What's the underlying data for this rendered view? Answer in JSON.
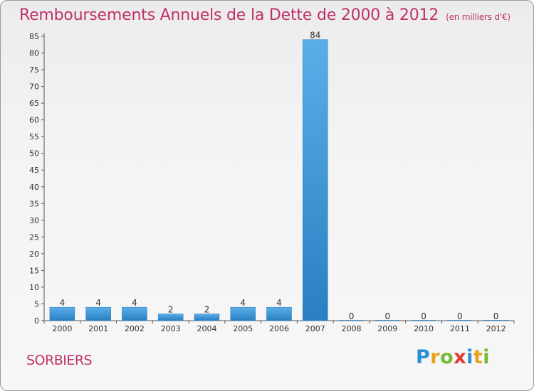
{
  "chart_data": {
    "type": "bar",
    "title": "Remboursements Annuels de la Dette de 2000 à 2012",
    "subtitle": "(en milliers d'€)",
    "categories": [
      "2000",
      "2001",
      "2002",
      "2003",
      "2004",
      "2005",
      "2006",
      "2007",
      "2008",
      "2009",
      "2010",
      "2011",
      "2012"
    ],
    "values": [
      4,
      4,
      4,
      2,
      2,
      4,
      4,
      84,
      0,
      0,
      0,
      0,
      0
    ],
    "ylim": [
      0,
      85
    ],
    "yticks": [
      0,
      5,
      10,
      15,
      20,
      25,
      30,
      35,
      40,
      45,
      50,
      55,
      60,
      65,
      70,
      75,
      80,
      85
    ],
    "grid": false,
    "bar_color": "#3a8fd0"
  },
  "commune": "SORBIERS",
  "logo": {
    "letters": [
      "P",
      "r",
      "o",
      "x",
      "i",
      "t",
      "i"
    ]
  }
}
